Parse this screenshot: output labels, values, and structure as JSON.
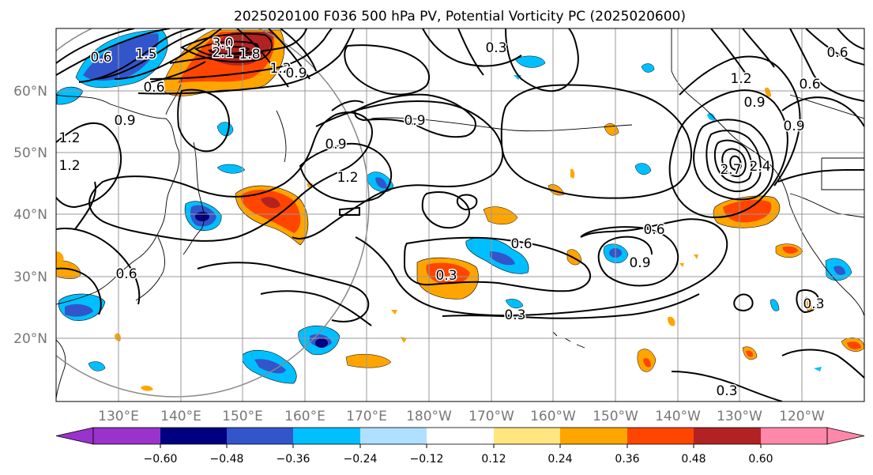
{
  "title": "2025020100 F036 500 hPa PV, Potential Vorticity PC (2025020600)",
  "lat_labels": [
    "60°N",
    "50°N",
    "40°N",
    "30°N",
    "20°N"
  ],
  "lon_labels": [
    "130°E",
    "140°E",
    "150°E",
    "160°E",
    "170°E",
    "180°W",
    "170°W",
    "160°W",
    "150°W",
    "140°W",
    "130°W",
    "120°W"
  ],
  "colorbar": {
    "ticks": [
      "−0.60",
      "−0.48",
      "−0.36",
      "−0.24",
      "−0.12",
      "0.12",
      "0.24",
      "0.36",
      "0.48",
      "0.60"
    ],
    "colors": [
      "#9933cc",
      "#000080",
      "#3355cc",
      "#00bfff",
      "#b0e0ff",
      "#ffffff",
      "#ffe680",
      "#ffa500",
      "#ff4500",
      "#b22222",
      "#ff88aa"
    ]
  },
  "contour_labels": [
    {
      "text": "0.6"
    },
    {
      "text": "1.5"
    },
    {
      "text": "3.0"
    },
    {
      "text": "2.1"
    },
    {
      "text": "1.8"
    },
    {
      "text": "1.2"
    },
    {
      "text": "0.9"
    },
    {
      "text": "0.6"
    },
    {
      "text": "0.3"
    },
    {
      "text": "0.9"
    },
    {
      "text": "1.2"
    },
    {
      "text": "1.2"
    },
    {
      "text": "0.9"
    },
    {
      "text": "0.9"
    },
    {
      "text": "1.2"
    },
    {
      "text": "0.6"
    },
    {
      "text": "0.6"
    },
    {
      "text": "0.3"
    },
    {
      "text": "0.6"
    },
    {
      "text": "0.9"
    },
    {
      "text": "0.3"
    },
    {
      "text": "0.6"
    },
    {
      "text": "1.2"
    },
    {
      "text": "0.9"
    },
    {
      "text": "0.6"
    },
    {
      "text": "2.7"
    },
    {
      "text": "2.4"
    },
    {
      "text": "0.9"
    },
    {
      "text": "0.3"
    },
    {
      "text": "0.3"
    }
  ]
}
